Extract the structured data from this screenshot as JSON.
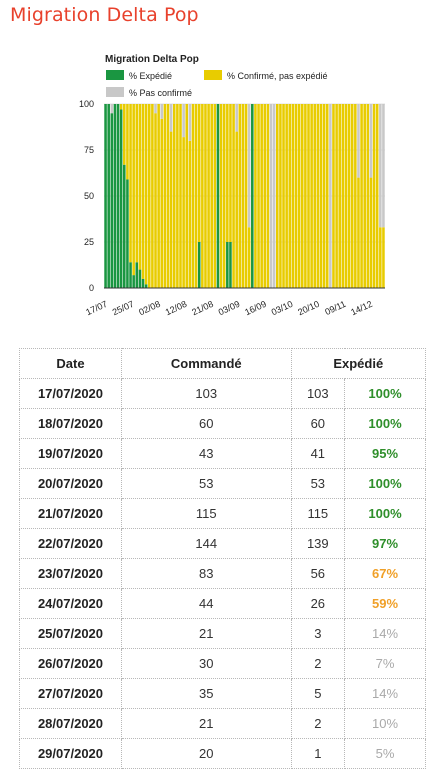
{
  "page": {
    "title": "Migration Delta Pop"
  },
  "colors": {
    "title": "#e8412c",
    "shipped": "#1a9641",
    "confirmed_not_shipped": "#e8cc00",
    "not_confirmed": "#c8c8c8"
  },
  "chart_data": {
    "type": "bar",
    "stacked": true,
    "title": "Migration Delta Pop",
    "legend": [
      {
        "name": "% Expédié",
        "color": "#1a9641"
      },
      {
        "name": "% Confirmé, pas expédié",
        "color": "#e8cc00"
      },
      {
        "name": "% Pas confirmé",
        "color": "#c8c8c8"
      }
    ],
    "legend_position": "top-left",
    "ylim": [
      0,
      100
    ],
    "yticks": [
      0,
      25,
      50,
      75,
      100
    ],
    "xtick_labels": [
      "17/07",
      "25/07",
      "02/08",
      "12/08",
      "21/08",
      "03/09",
      "16/09",
      "03/10",
      "20/10",
      "09/11",
      "14/12"
    ],
    "grid": true,
    "series": [
      {
        "name": "% Expédié",
        "values": [
          100,
          100,
          95,
          100,
          100,
          97,
          67,
          59,
          14,
          7,
          14,
          10,
          5,
          2,
          0,
          0,
          0,
          0,
          0,
          0,
          0,
          0,
          0,
          0,
          0,
          0,
          0,
          0,
          0,
          0,
          25,
          0,
          0,
          0,
          0,
          0,
          100,
          0,
          0,
          25,
          25,
          0,
          0,
          0,
          0,
          0,
          0,
          100,
          0,
          0,
          0,
          0,
          0,
          0,
          0,
          0,
          0,
          0,
          0,
          0,
          0,
          0,
          0,
          0,
          0,
          0,
          0,
          0,
          0,
          0,
          0,
          0,
          0,
          0,
          0,
          0,
          0,
          0,
          0,
          0,
          0,
          0,
          0,
          0,
          0,
          0,
          0,
          0,
          0,
          0
        ]
      },
      {
        "name": "% Confirmé, pas expédié",
        "values": [
          0,
          0,
          0,
          0,
          0,
          3,
          33,
          41,
          86,
          93,
          86,
          90,
          95,
          98,
          100,
          100,
          95,
          100,
          92,
          100,
          100,
          85,
          100,
          100,
          100,
          82,
          100,
          80,
          100,
          100,
          75,
          100,
          100,
          100,
          100,
          100,
          0,
          100,
          100,
          75,
          75,
          100,
          85,
          100,
          100,
          100,
          33,
          0,
          100,
          100,
          100,
          100,
          100,
          0,
          0,
          100,
          100,
          100,
          100,
          100,
          100,
          100,
          100,
          100,
          100,
          100,
          100,
          100,
          100,
          100,
          100,
          100,
          0,
          100,
          100,
          100,
          100,
          100,
          100,
          100,
          100,
          60,
          100,
          100,
          100,
          60,
          100,
          100,
          33,
          33
        ]
      },
      {
        "name": "% Pas confirmé",
        "values": [
          0,
          0,
          5,
          0,
          0,
          0,
          0,
          0,
          0,
          0,
          0,
          0,
          0,
          0,
          0,
          0,
          5,
          0,
          8,
          0,
          0,
          15,
          0,
          0,
          0,
          18,
          0,
          20,
          0,
          0,
          0,
          0,
          0,
          0,
          0,
          0,
          0,
          0,
          0,
          0,
          0,
          0,
          15,
          0,
          0,
          0,
          67,
          0,
          0,
          0,
          0,
          0,
          0,
          100,
          100,
          0,
          0,
          0,
          0,
          0,
          0,
          0,
          0,
          0,
          0,
          0,
          0,
          0,
          0,
          0,
          0,
          0,
          100,
          0,
          0,
          0,
          0,
          0,
          0,
          0,
          0,
          40,
          0,
          0,
          0,
          40,
          0,
          0,
          67,
          67
        ]
      }
    ]
  },
  "table": {
    "headers": {
      "date": "Date",
      "ordered": "Commandé",
      "shipped": "Expédié"
    },
    "rows": [
      {
        "date": "17/07/2020",
        "ordered": "103",
        "shipped": "103",
        "pct": "100%",
        "level": "full"
      },
      {
        "date": "18/07/2020",
        "ordered": "60",
        "shipped": "60",
        "pct": "100%",
        "level": "full"
      },
      {
        "date": "19/07/2020",
        "ordered": "43",
        "shipped": "41",
        "pct": "95%",
        "level": "full"
      },
      {
        "date": "20/07/2020",
        "ordered": "53",
        "shipped": "53",
        "pct": "100%",
        "level": "full"
      },
      {
        "date": "21/07/2020",
        "ordered": "115",
        "shipped": "115",
        "pct": "100%",
        "level": "full"
      },
      {
        "date": "22/07/2020",
        "ordered": "144",
        "shipped": "139",
        "pct": "97%",
        "level": "full"
      },
      {
        "date": "23/07/2020",
        "ordered": "83",
        "shipped": "56",
        "pct": "67%",
        "level": "warn"
      },
      {
        "date": "24/07/2020",
        "ordered": "44",
        "shipped": "26",
        "pct": "59%",
        "level": "warn"
      },
      {
        "date": "25/07/2020",
        "ordered": "21",
        "shipped": "3",
        "pct": "14%",
        "level": "low"
      },
      {
        "date": "26/07/2020",
        "ordered": "30",
        "shipped": "2",
        "pct": "7%",
        "level": "low"
      },
      {
        "date": "27/07/2020",
        "ordered": "35",
        "shipped": "5",
        "pct": "14%",
        "level": "low"
      },
      {
        "date": "28/07/2020",
        "ordered": "21",
        "shipped": "2",
        "pct": "10%",
        "level": "low"
      },
      {
        "date": "29/07/2020",
        "ordered": "20",
        "shipped": "1",
        "pct": "5%",
        "level": "low"
      }
    ]
  }
}
